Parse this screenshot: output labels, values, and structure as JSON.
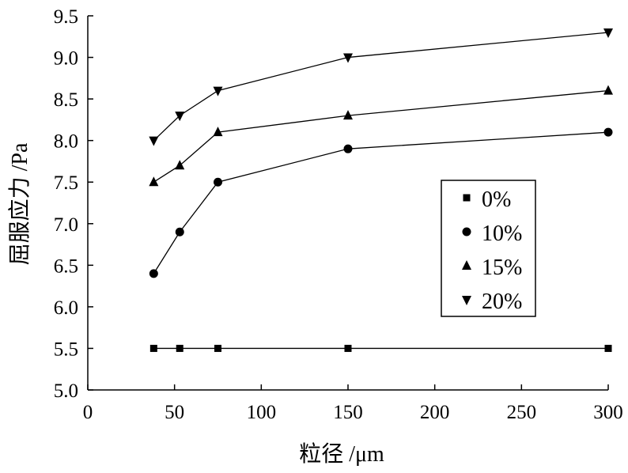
{
  "chart_data": {
    "type": "line",
    "xlabel": "粒径 /μm",
    "ylabel": "屈服应力 /Pa",
    "xlim": [
      0,
      300
    ],
    "ylim": [
      5.0,
      9.5
    ],
    "x_ticks": [
      "0",
      "50",
      "100",
      "150",
      "200",
      "250",
      "300"
    ],
    "y_ticks": [
      "5.0",
      "5.5",
      "6.0",
      "6.5",
      "7.0",
      "7.5",
      "8.0",
      "8.5",
      "9.0",
      "9.5"
    ],
    "grid": false,
    "legend_position": "right",
    "series": [
      {
        "name": "0%",
        "marker": "square",
        "color": "#000000",
        "x": [
          38,
          53,
          75,
          150,
          300
        ],
        "y": [
          5.5,
          5.5,
          5.5,
          5.5,
          5.5
        ]
      },
      {
        "name": "10%",
        "marker": "circle",
        "color": "#000000",
        "x": [
          38,
          53,
          75,
          150,
          300
        ],
        "y": [
          6.4,
          6.9,
          7.5,
          7.9,
          8.1
        ]
      },
      {
        "name": "15%",
        "marker": "triangle-up",
        "color": "#000000",
        "x": [
          38,
          53,
          75,
          150,
          300
        ],
        "y": [
          7.5,
          7.7,
          8.1,
          8.3,
          8.6
        ]
      },
      {
        "name": "20%",
        "marker": "triangle-down",
        "color": "#000000",
        "x": [
          38,
          53,
          75,
          150,
          300
        ],
        "y": [
          8.0,
          8.3,
          8.6,
          9.0,
          9.3
        ]
      }
    ]
  }
}
